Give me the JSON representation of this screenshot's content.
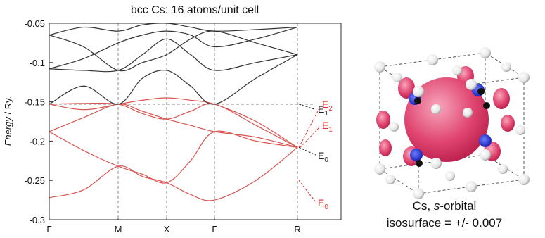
{
  "chart_data": {
    "type": "line",
    "title": "bcc Cs: 16 atoms/unit cell",
    "ylabel": {
      "italic": "Energy",
      "rest": " / Ry."
    },
    "x": [
      0,
      49,
      98,
      132.5,
      167,
      201,
      235,
      294,
      353
    ],
    "xlim": [
      0,
      415
    ],
    "xticks": [
      {
        "value": 0,
        "label": "Γ"
      },
      {
        "value": 98,
        "label": "M"
      },
      {
        "value": 167,
        "label": "X"
      },
      {
        "value": 235,
        "label": "Γ"
      },
      {
        "value": 353,
        "label": "R"
      }
    ],
    "ylim": [
      -0.3,
      -0.05
    ],
    "yticks": [
      -0.05,
      -0.1,
      -0.15,
      -0.2,
      -0.25,
      -0.3
    ],
    "reference_line": -0.153,
    "series": [
      {
        "color": "#d9534f",
        "values": [
          -0.272,
          -0.262,
          -0.232,
          -0.245,
          -0.253,
          -0.268,
          -0.275,
          -0.25,
          -0.208
        ]
      },
      {
        "color": "#d9534f",
        "values": [
          -0.188,
          -0.212,
          -0.232,
          -0.242,
          -0.253,
          -0.225,
          -0.188,
          -0.2,
          -0.208
        ]
      },
      {
        "color": "#d9534f",
        "values": [
          -0.188,
          -0.17,
          -0.153,
          -0.162,
          -0.172,
          -0.18,
          -0.188,
          -0.195,
          -0.208
        ]
      },
      {
        "color": "#d9534f",
        "values": [
          -0.153,
          -0.152,
          -0.153,
          -0.165,
          -0.172,
          -0.162,
          -0.153,
          -0.18,
          -0.208
        ]
      },
      {
        "color": "#d9534f",
        "values": [
          -0.153,
          -0.16,
          -0.153,
          -0.148,
          -0.145,
          -0.148,
          -0.153,
          -0.175,
          -0.208
        ]
      },
      {
        "color": "#333333",
        "values": [
          -0.153,
          -0.13,
          -0.153,
          -0.12,
          -0.11,
          -0.13,
          -0.153,
          -0.12,
          -0.09
        ]
      },
      {
        "color": "#333333",
        "values": [
          -0.108,
          -0.11,
          -0.11,
          -0.09,
          -0.07,
          -0.09,
          -0.11,
          -0.1,
          -0.09
        ]
      },
      {
        "color": "#333333",
        "values": [
          -0.065,
          -0.08,
          -0.11,
          -0.1,
          -0.09,
          -0.07,
          -0.06,
          -0.075,
          -0.09
        ]
      },
      {
        "color": "#333333",
        "values": [
          -0.108,
          -0.095,
          -0.075,
          -0.065,
          -0.06,
          -0.065,
          -0.08,
          -0.07,
          -0.055
        ]
      },
      {
        "color": "#333333",
        "values": [
          -0.065,
          -0.055,
          -0.06,
          -0.052,
          -0.05,
          -0.055,
          -0.06,
          -0.058,
          -0.055
        ]
      }
    ],
    "annotations": [
      {
        "text": "E",
        "sub": "1",
        "color": "#222222"
      },
      {
        "text": "E",
        "sub": "2",
        "color": "#e0302a"
      },
      {
        "text": "E",
        "sub": "1",
        "color": "#e0302a"
      },
      {
        "text": "E",
        "sub": "0",
        "color": "#222222"
      },
      {
        "text": "E",
        "sub": "0",
        "color": "#e0302a"
      }
    ]
  },
  "image": {
    "caption": {
      "prefix": "Cs, ",
      "italic": "s",
      "suffix": "-orbital",
      "line2": "isosurface = +/- 0.007"
    }
  }
}
